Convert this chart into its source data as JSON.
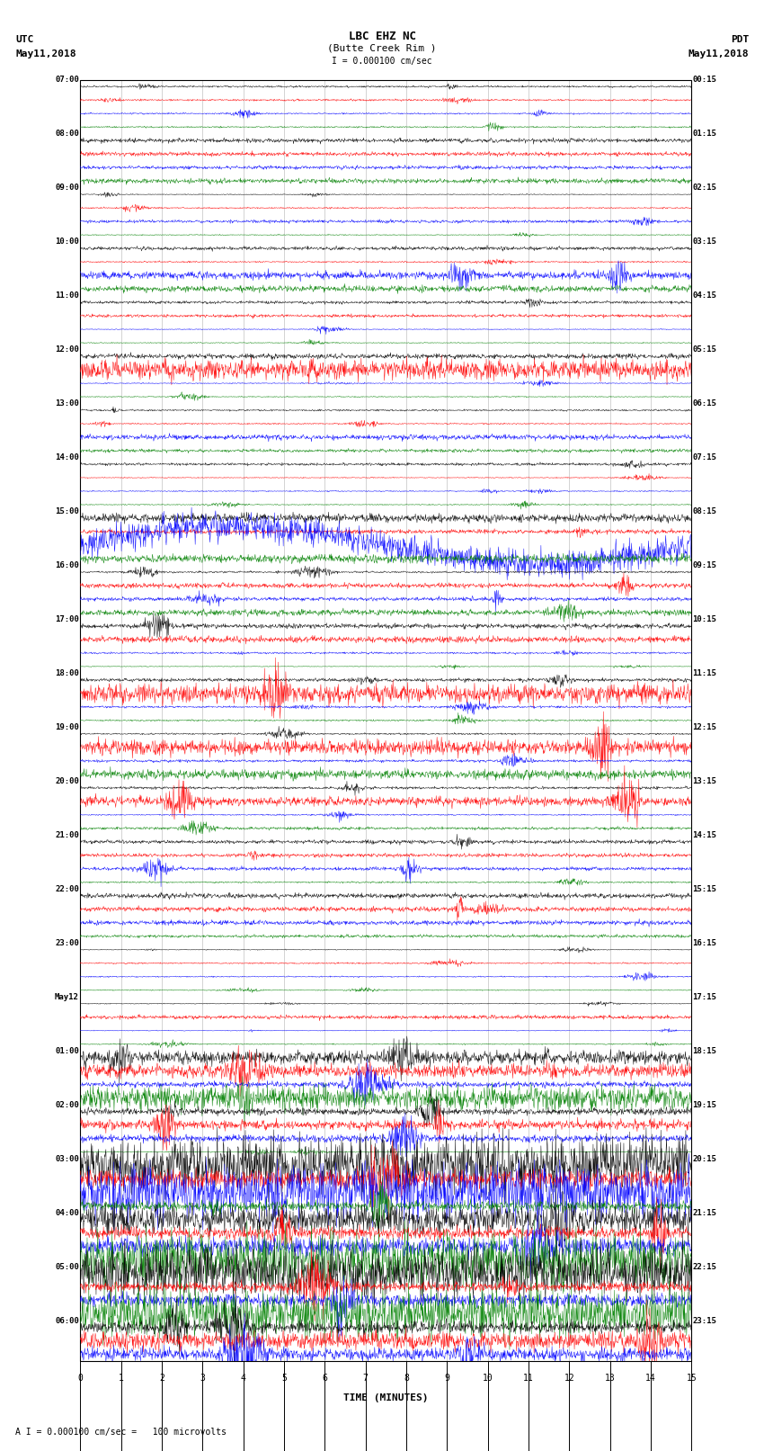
{
  "title_line1": "LBC EHZ NC",
  "title_line2": "(Butte Creek Rim )",
  "scale_text": "I = 0.000100 cm/sec",
  "footer_text": "A I = 0.000100 cm/sec =   100 microvolts",
  "xlabel": "TIME (MINUTES)",
  "utc_label": "UTC",
  "pdt_label": "PDT",
  "date_left": "May11,2018",
  "date_right": "May11,2018",
  "bg_color": "#ffffff",
  "trace_colors": [
    "black",
    "red",
    "blue",
    "green"
  ],
  "left_times": [
    "07:00",
    "",
    "",
    "",
    "08:00",
    "",
    "",
    "",
    "09:00",
    "",
    "",
    "",
    "10:00",
    "",
    "",
    "",
    "11:00",
    "",
    "",
    "",
    "12:00",
    "",
    "",
    "",
    "13:00",
    "",
    "",
    "",
    "14:00",
    "",
    "",
    "",
    "15:00",
    "",
    "",
    "",
    "16:00",
    "",
    "",
    "",
    "17:00",
    "",
    "",
    "",
    "18:00",
    "",
    "",
    "",
    "19:00",
    "",
    "",
    "",
    "20:00",
    "",
    "",
    "",
    "21:00",
    "",
    "",
    "",
    "22:00",
    "",
    "",
    "",
    "23:00",
    "",
    "",
    "",
    "May12",
    "",
    "",
    "",
    "01:00",
    "",
    "",
    "",
    "02:00",
    "",
    "",
    "",
    "03:00",
    "",
    "",
    "",
    "04:00",
    "",
    "",
    "",
    "05:00",
    "",
    "",
    "",
    "06:00",
    "",
    ""
  ],
  "right_times": [
    "00:15",
    "",
    "",
    "",
    "01:15",
    "",
    "",
    "",
    "02:15",
    "",
    "",
    "",
    "03:15",
    "",
    "",
    "",
    "04:15",
    "",
    "",
    "",
    "05:15",
    "",
    "",
    "",
    "06:15",
    "",
    "",
    "",
    "07:15",
    "",
    "",
    "",
    "08:15",
    "",
    "",
    "",
    "09:15",
    "",
    "",
    "",
    "10:15",
    "",
    "",
    "",
    "11:15",
    "",
    "",
    "",
    "12:15",
    "",
    "",
    "",
    "13:15",
    "",
    "",
    "",
    "14:15",
    "",
    "",
    "",
    "15:15",
    "",
    "",
    "",
    "16:15",
    "",
    "",
    "",
    "17:15",
    "",
    "",
    "",
    "18:15",
    "",
    "",
    "",
    "19:15",
    "",
    "",
    "",
    "20:15",
    "",
    "",
    "",
    "21:15",
    "",
    "",
    "",
    "22:15",
    "",
    "",
    "",
    "23:15",
    "",
    ""
  ],
  "n_rows": 95,
  "x_ticks": [
    0,
    1,
    2,
    3,
    4,
    5,
    6,
    7,
    8,
    9,
    10,
    11,
    12,
    13,
    14,
    15
  ],
  "x_lim": [
    0,
    15
  ],
  "fig_width": 8.5,
  "fig_height": 16.13,
  "dpi": 100
}
